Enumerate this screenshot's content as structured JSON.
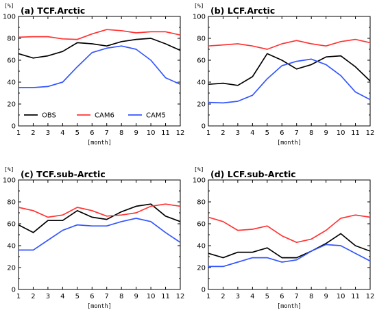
{
  "chart_data": [
    {
      "type": "line",
      "title": "(a) TCF.Arctic",
      "unit": "[%]",
      "xlabel": "[month]",
      "x": [
        1,
        2,
        3,
        4,
        5,
        6,
        7,
        8,
        9,
        10,
        11,
        12
      ],
      "xlim": [
        1,
        12
      ],
      "ylim": [
        0,
        100
      ],
      "yticks": [
        0,
        20,
        40,
        60,
        80,
        100
      ],
      "grid": false,
      "legend_position": "bottom-left",
      "series": [
        {
          "name": "OBS",
          "color": "#000000",
          "values": [
            66,
            62,
            64,
            68,
            76,
            75,
            73,
            77,
            79,
            80,
            75,
            69
          ]
        },
        {
          "name": "CAM6",
          "color": "#ff3333",
          "values": [
            81,
            81.5,
            81.5,
            79.5,
            79,
            84,
            88,
            87,
            85,
            86,
            86,
            83
          ]
        },
        {
          "name": "CAM5",
          "color": "#3355ff",
          "values": [
            35,
            35,
            36,
            40,
            54,
            67,
            71,
            73,
            70,
            60,
            44,
            38
          ]
        }
      ]
    },
    {
      "type": "line",
      "title": "(b) LCF.Arctic",
      "unit": "[%]",
      "xlabel": "[month]",
      "x": [
        1,
        2,
        3,
        4,
        5,
        6,
        7,
        8,
        9,
        10,
        11,
        12
      ],
      "xlim": [
        1,
        12
      ],
      "ylim": [
        0,
        100
      ],
      "yticks": [
        0,
        20,
        40,
        60,
        80,
        100
      ],
      "grid": false,
      "series": [
        {
          "name": "OBS",
          "color": "#000000",
          "values": [
            38,
            39,
            37,
            45,
            66,
            60,
            52,
            56,
            63,
            64,
            54,
            41
          ]
        },
        {
          "name": "CAM6",
          "color": "#ff3333",
          "values": [
            73,
            74,
            75,
            73,
            70,
            75,
            78,
            75,
            73,
            77,
            79,
            76
          ]
        },
        {
          "name": "CAM5",
          "color": "#3355ff",
          "values": [
            21.5,
            21,
            22.5,
            28,
            43,
            55,
            59,
            61,
            56,
            46,
            31,
            24
          ]
        }
      ]
    },
    {
      "type": "line",
      "title": "(c) TCF.sub-Arctic",
      "unit": "[%]",
      "xlabel": "[month]",
      "x": [
        1,
        2,
        3,
        4,
        5,
        6,
        7,
        8,
        9,
        10,
        11,
        12
      ],
      "xlim": [
        1,
        12
      ],
      "ylim": [
        0,
        100
      ],
      "yticks": [
        0,
        20,
        40,
        60,
        80,
        100
      ],
      "grid": false,
      "series": [
        {
          "name": "OBS",
          "color": "#000000",
          "values": [
            59,
            52,
            63,
            63,
            72,
            66,
            64,
            71,
            76,
            78,
            67,
            62
          ]
        },
        {
          "name": "CAM6",
          "color": "#ff3333",
          "values": [
            75,
            72,
            66,
            68,
            75,
            72,
            67,
            68,
            70,
            76,
            78,
            76
          ]
        },
        {
          "name": "CAM5",
          "color": "#3355ff",
          "values": [
            36,
            36,
            45,
            54,
            59,
            58,
            58,
            62,
            65,
            62,
            52,
            43
          ]
        }
      ]
    },
    {
      "type": "line",
      "title": "(d) LCF.sub-Arctic",
      "unit": "[%]",
      "xlabel": "[month]",
      "x": [
        1,
        2,
        3,
        4,
        5,
        6,
        7,
        8,
        9,
        10,
        11,
        12
      ],
      "xlim": [
        1,
        12
      ],
      "ylim": [
        0,
        100
      ],
      "yticks": [
        0,
        20,
        40,
        60,
        80,
        100
      ],
      "grid": false,
      "series": [
        {
          "name": "OBS",
          "color": "#000000",
          "values": [
            33,
            29,
            34,
            34,
            38,
            29,
            29,
            35,
            42,
            51,
            40,
            35
          ]
        },
        {
          "name": "CAM6",
          "color": "#ff3333",
          "values": [
            66,
            62,
            54,
            55,
            58,
            49,
            43,
            46,
            54,
            65,
            68,
            66
          ]
        },
        {
          "name": "CAM5",
          "color": "#3355ff",
          "values": [
            21,
            21,
            25,
            29,
            29,
            25,
            27,
            35,
            41,
            40,
            33,
            26
          ]
        }
      ]
    }
  ]
}
